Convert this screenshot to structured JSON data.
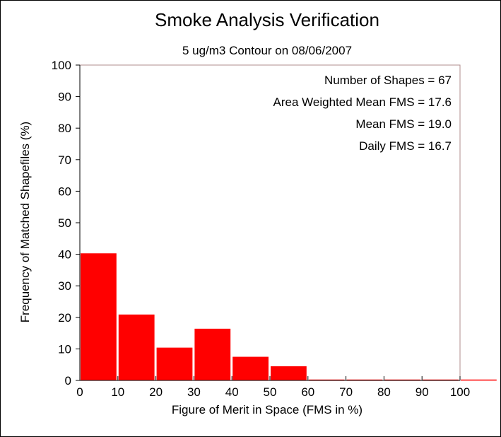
{
  "chart_data": {
    "type": "bar",
    "title": "Smoke Analysis Verification",
    "subtitle": "5 ug/m3 Contour on 08/06/2007",
    "xlabel": "Figure of Merit in Space (FMS in %)",
    "ylabel": "Frequency of Matched Shapefiles (%)",
    "xlim": [
      0,
      100
    ],
    "ylim": [
      0,
      100
    ],
    "xticks": [
      0,
      10,
      20,
      30,
      40,
      50,
      60,
      70,
      80,
      90,
      100
    ],
    "yticks": [
      0,
      10,
      20,
      30,
      40,
      50,
      60,
      70,
      80,
      90,
      100
    ],
    "bins": [
      [
        0,
        10
      ],
      [
        10,
        20
      ],
      [
        20,
        30
      ],
      [
        30,
        40
      ],
      [
        40,
        50
      ],
      [
        50,
        60
      ],
      [
        60,
        70
      ],
      [
        70,
        80
      ],
      [
        80,
        90
      ],
      [
        90,
        100
      ],
      [
        100,
        110
      ]
    ],
    "values": [
      40.3,
      20.9,
      10.4,
      16.4,
      7.5,
      4.5,
      0,
      0,
      0,
      0,
      0
    ],
    "bar_color": "#ff0000",
    "grid": false,
    "annotations": [
      "Number of Shapes = 67",
      "Area Weighted Mean FMS = 17.6",
      "Mean FMS = 19.0",
      "Daily FMS = 16.7"
    ]
  }
}
